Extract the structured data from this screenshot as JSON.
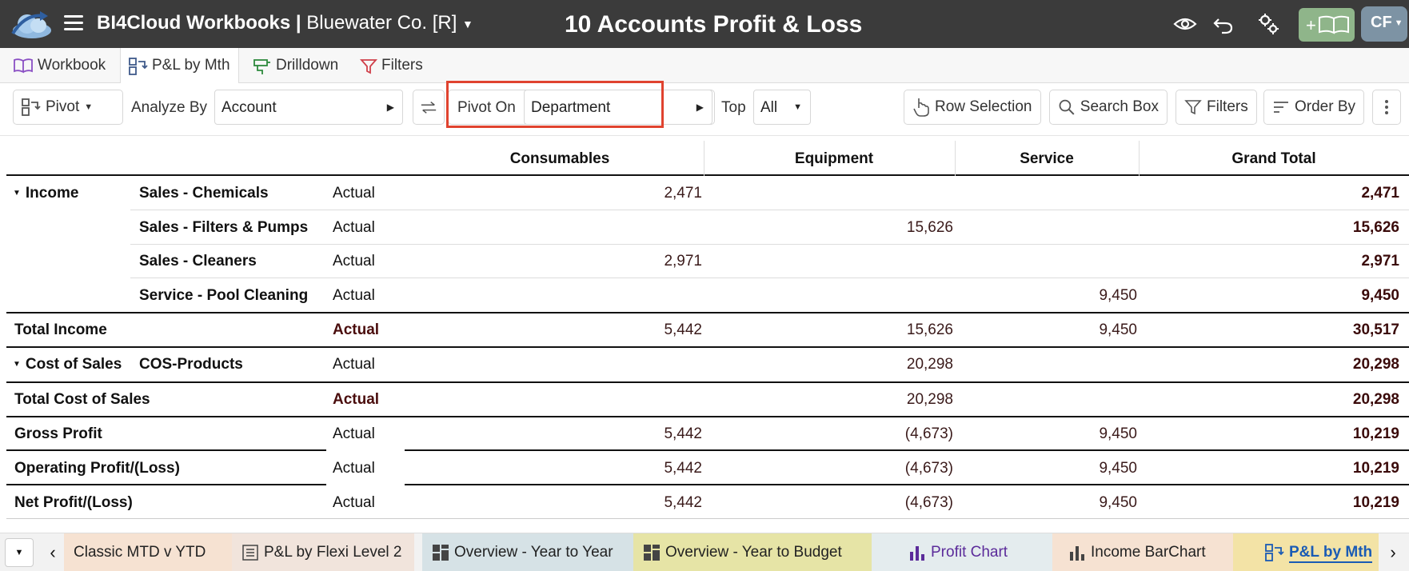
{
  "header": {
    "app_name": "BI4Cloud Workbooks |",
    "company": " Bluewater Co. [R]",
    "page_title": "10 Accounts Profit & Loss",
    "add_book_label": "+",
    "user_initials": "CF",
    "icons": [
      "logo-cloud-icon",
      "menu-icon",
      "eye-icon",
      "undo-icon",
      "settings-icon",
      "add-book-icon"
    ]
  },
  "view_tabs": [
    {
      "label": "Workbook",
      "icon": "book-icon"
    },
    {
      "label": "P&L by Mth",
      "icon": "pivot-icon"
    },
    {
      "label": "Drilldown",
      "icon": "drill-icon"
    },
    {
      "label": "Filters",
      "icon": "filter-icon"
    }
  ],
  "toolbar": {
    "pivot_label": "Pivot",
    "analyze_by_label": "Analyze By",
    "analyze_by_value": "Account",
    "pivot_on_label": "Pivot On",
    "pivot_on_value": "Department",
    "top_label": "Top",
    "top_value": "All",
    "row_selection_label": "Row Selection",
    "search_box_label": "Search Box",
    "filters_label": "Filters",
    "order_by_label": "Order By"
  },
  "table": {
    "columns": [
      "Consumables",
      "Equipment",
      "Service",
      "Grand Total"
    ],
    "rows": [
      {
        "group": "Income",
        "account": "Sales - Chemicals",
        "type": "Actual",
        "consumables": "2,471",
        "equipment": "",
        "service": "",
        "total": "2,471"
      },
      {
        "group": "",
        "account": "Sales - Filters & Pumps",
        "type": "Actual",
        "consumables": "",
        "equipment": "15,626",
        "service": "",
        "total": "15,626"
      },
      {
        "group": "",
        "account": "Sales - Cleaners",
        "type": "Actual",
        "consumables": "2,971",
        "equipment": "",
        "service": "",
        "total": "2,971"
      },
      {
        "group": "",
        "account": "Service - Pool Cleaning",
        "type": "Actual",
        "consumables": "",
        "equipment": "",
        "service": "9,450",
        "total": "9,450"
      },
      {
        "group": "Total Income",
        "account": "",
        "type": "Actual",
        "consumables": "5,442",
        "equipment": "15,626",
        "service": "9,450",
        "total": "30,517"
      },
      {
        "group": "Cost of Sales",
        "account": "COS-Products",
        "type": "Actual",
        "consumables": "",
        "equipment": "20,298",
        "service": "",
        "total": "20,298"
      },
      {
        "group": "Total Cost of Sales",
        "account": "",
        "type": "Actual",
        "consumables": "",
        "equipment": "20,298",
        "service": "",
        "total": "20,298"
      },
      {
        "group": "Gross Profit",
        "account": "",
        "type": "Actual",
        "consumables": "5,442",
        "equipment": "(4,673)",
        "service": "9,450",
        "total": "10,219"
      },
      {
        "group": "Operating Profit/(Loss)",
        "account": "",
        "type": "Actual",
        "consumables": "5,442",
        "equipment": "(4,673)",
        "service": "9,450",
        "total": "10,219"
      },
      {
        "group": "Net Profit/(Loss)",
        "account": "",
        "type": "Actual",
        "consumables": "5,442",
        "equipment": "(4,673)",
        "service": "9,450",
        "total": "10,219"
      }
    ]
  },
  "bottom_tabs": [
    {
      "label": "Classic MTD v YTD",
      "icon": "",
      "bg": "#f6e2d2",
      "color": "#222"
    },
    {
      "label": "P&L by Flexi Level 2",
      "icon": "list-icon",
      "bg": "#f1e4dc",
      "color": "#222"
    },
    {
      "label": "Overview - Year to Year",
      "icon": "dashboard-icon",
      "bg": "#d6e2e6",
      "color": "#222"
    },
    {
      "label": "Overview - Year to Budget",
      "icon": "dashboard-icon",
      "bg": "#e6e4a6",
      "color": "#222"
    },
    {
      "label": "Profit Chart",
      "icon": "bar-chart-icon",
      "bg": "#e4ecee",
      "color": "#5b2b9a"
    },
    {
      "label": "Income BarChart",
      "icon": "bar-chart-icon",
      "bg": "#f6e2d2",
      "color": "#222"
    },
    {
      "label": "P&L by Mth",
      "icon": "pivot-icon",
      "bg": "#f3e3a6",
      "color": "#1a5bb5"
    }
  ],
  "colors": {
    "header_bg": "#3b3b3b",
    "highlight": "#e0432f",
    "add_book_bg": "#8fb58a",
    "avatar_bg": "#7d93a4",
    "active_bottom_tab": "#1a5bb5"
  }
}
